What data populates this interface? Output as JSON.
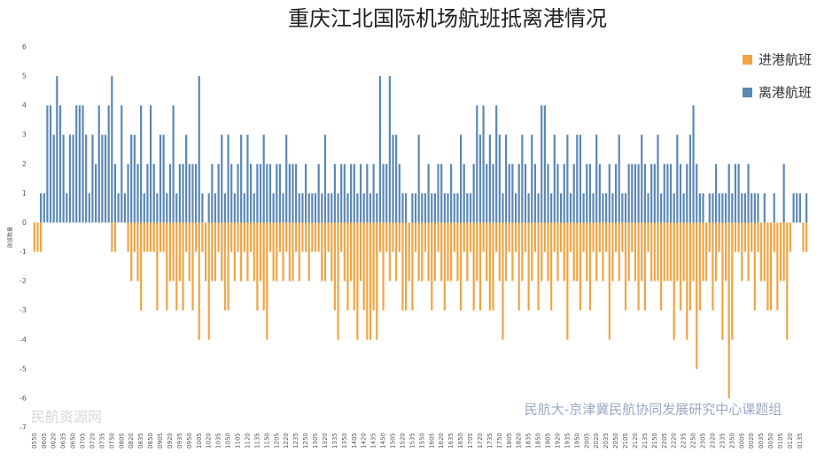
{
  "chart_data": {
    "type": "bar",
    "title": "重庆江北国际机场航班抵离港情况",
    "y_label": "航班数量",
    "annotations": [
      "民航大-京津冀民航协同发展研究中心课题组",
      "民航资源网"
    ],
    "legend_position": "top-right",
    "grid": false,
    "ylim": [
      -7,
      6
    ],
    "yticks": [
      -7,
      -6,
      -5,
      -4,
      -3,
      -2,
      -1,
      0,
      1,
      2,
      3,
      4,
      5,
      6
    ],
    "categories": [
      "0550",
      null,
      null,
      "0605",
      null,
      null,
      "0620",
      null,
      null,
      "0635",
      null,
      null,
      "0650",
      null,
      null,
      "0705",
      null,
      null,
      "0720",
      null,
      null,
      "0735",
      null,
      null,
      "0750",
      null,
      null,
      "0805",
      null,
      null,
      "0820",
      null,
      null,
      "0835",
      null,
      null,
      "0850",
      null,
      null,
      "0905",
      null,
      null,
      "0920",
      null,
      null,
      "0935",
      null,
      null,
      "0950",
      null,
      null,
      "1005",
      null,
      null,
      "1020",
      null,
      null,
      "1035",
      null,
      null,
      "1050",
      null,
      null,
      "1105",
      null,
      null,
      "1120",
      null,
      null,
      "1135",
      null,
      null,
      "1150",
      null,
      null,
      "1205",
      null,
      null,
      "1220",
      null,
      null,
      "1235",
      null,
      null,
      "1250",
      null,
      null,
      "1305",
      null,
      null,
      "1320",
      null,
      null,
      "1335",
      null,
      null,
      "1350",
      null,
      null,
      "1405",
      null,
      null,
      "1420",
      null,
      null,
      "1435",
      null,
      null,
      "1450",
      null,
      null,
      "1505",
      null,
      null,
      "1520",
      null,
      null,
      "1535",
      null,
      null,
      "1550",
      null,
      null,
      "1605",
      null,
      null,
      "1620",
      null,
      null,
      "1635",
      null,
      null,
      "1650",
      null,
      null,
      "1705",
      null,
      null,
      "1720",
      null,
      null,
      "1735",
      null,
      null,
      "1750",
      null,
      null,
      "1805",
      null,
      null,
      "1820",
      null,
      null,
      "1835",
      null,
      null,
      "1850",
      null,
      null,
      "1905",
      null,
      null,
      "1920",
      null,
      null,
      "1935",
      null,
      null,
      "1950",
      null,
      null,
      "2005",
      null,
      null,
      "2020",
      null,
      null,
      "2035",
      null,
      null,
      "2050",
      null,
      null,
      "2105",
      null,
      null,
      "2120",
      null,
      null,
      "2135",
      null,
      null,
      "2150",
      null,
      null,
      "2205",
      null,
      null,
      "2220",
      null,
      null,
      "2235",
      null,
      null,
      "2250",
      null,
      null,
      "2305",
      null,
      null,
      "2320",
      null,
      null,
      "2335",
      null,
      null,
      "2350",
      null,
      null,
      "0005",
      null,
      null,
      "0020",
      null,
      null,
      "0035",
      null,
      null,
      "0050",
      null,
      null,
      "0105",
      null,
      null,
      "0120",
      null,
      null,
      "0135",
      null,
      null
    ],
    "series": [
      {
        "name": "进港航班",
        "color": "#f0a443",
        "values": [
          -1,
          -1,
          -1,
          0,
          0,
          0,
          0,
          0,
          0,
          0,
          0,
          0,
          0,
          0,
          0,
          0,
          0,
          0,
          0,
          0,
          0,
          0,
          0,
          0,
          -1,
          -1,
          0,
          0,
          0,
          -1,
          -2,
          -1,
          -2,
          -3,
          -1,
          -1,
          -1,
          -1,
          -3,
          -1,
          -1,
          -3,
          -2,
          -2,
          -3,
          -2,
          -3,
          -1,
          -2,
          -3,
          -1,
          -4,
          -1,
          -2,
          -4,
          -2,
          -2,
          -1,
          -2,
          -3,
          -3,
          -1,
          -2,
          -1,
          -2,
          -1,
          -2,
          -1,
          -2,
          -3,
          -2,
          -3,
          -4,
          -1,
          -2,
          -2,
          -1,
          -2,
          -1,
          -2,
          -2,
          -1,
          -2,
          -1,
          -1,
          -2,
          -1,
          -1,
          -1,
          -2,
          -2,
          -1,
          -2,
          -3,
          -4,
          -1,
          -2,
          -3,
          -2,
          -3,
          -4,
          -2,
          -3,
          -4,
          -4,
          -3,
          -4,
          -1,
          -3,
          -1,
          -2,
          -1,
          -2,
          -1,
          -3,
          -3,
          -2,
          -3,
          -1,
          -2,
          -2,
          -1,
          -2,
          -3,
          -2,
          -1,
          -2,
          -3,
          -2,
          -2,
          -1,
          -2,
          -3,
          -1,
          -2,
          -1,
          -3,
          -2,
          -3,
          -1,
          -2,
          -3,
          -3,
          -1,
          -2,
          -4,
          -2,
          -1,
          -2,
          -1,
          -3,
          -2,
          -1,
          -3,
          -2,
          -1,
          -3,
          -2,
          -1,
          -2,
          -3,
          -1,
          -2,
          -1,
          -2,
          -4,
          -1,
          -2,
          -2,
          -3,
          -1,
          -2,
          -3,
          -1,
          -2,
          -1,
          -2,
          -1,
          -4,
          -2,
          -1,
          -2,
          -1,
          -3,
          -2,
          -1,
          -2,
          -3,
          -2,
          -3,
          -1,
          -2,
          -2,
          -2,
          -3,
          -2,
          -2,
          -2,
          -4,
          -2,
          -3,
          -2,
          -4,
          -3,
          -2,
          -5,
          -3,
          -2,
          -2,
          -1,
          -3,
          -2,
          -1,
          -4,
          -2,
          -6,
          -4,
          -1,
          -1,
          -2,
          -1,
          -2,
          -1,
          -3,
          -1,
          -2,
          -2,
          -3,
          -3,
          -1,
          -3,
          -2,
          -2,
          -4,
          -1,
          0,
          0,
          0,
          -1,
          -1
        ]
      },
      {
        "name": "离港航班",
        "color": "#5b87b5",
        "values": [
          0,
          0,
          1,
          1,
          4,
          4,
          3,
          5,
          4,
          3,
          1,
          3,
          3,
          4,
          4,
          4,
          3,
          1,
          3,
          2,
          4,
          3,
          3,
          4,
          5,
          2,
          1,
          4,
          1,
          2,
          3,
          3,
          2,
          4,
          1,
          2,
          4,
          2,
          1,
          3,
          3,
          1,
          2,
          4,
          1,
          2,
          2,
          3,
          2,
          2,
          2,
          5,
          1,
          0,
          1,
          2,
          1,
          2,
          3,
          1,
          3,
          2,
          1,
          2,
          3,
          1,
          3,
          2,
          1,
          2,
          2,
          3,
          2,
          2,
          1,
          2,
          2,
          1,
          3,
          2,
          2,
          2,
          1,
          1,
          2,
          1,
          1,
          1,
          2,
          1,
          3,
          1,
          1,
          2,
          1,
          2,
          2,
          1,
          2,
          2,
          1,
          2,
          1,
          2,
          1,
          2,
          1,
          5,
          2,
          2,
          5,
          3,
          3,
          2,
          1,
          1,
          0,
          1,
          1,
          3,
          1,
          1,
          2,
          1,
          1,
          2,
          2,
          1,
          1,
          2,
          1,
          1,
          3,
          2,
          1,
          1,
          2,
          4,
          3,
          4,
          2,
          3,
          2,
          4,
          3,
          1,
          3,
          2,
          2,
          1,
          2,
          3,
          2,
          1,
          3,
          2,
          1,
          4,
          4,
          2,
          1,
          3,
          2,
          1,
          2,
          3,
          1,
          2,
          3,
          3,
          1,
          2,
          2,
          1,
          3,
          2,
          1,
          1,
          2,
          1,
          2,
          3,
          1,
          1,
          2,
          2,
          2,
          2,
          3,
          2,
          1,
          2,
          2,
          3,
          1,
          2,
          2,
          2,
          1,
          3,
          2,
          1,
          2,
          3,
          4,
          2,
          1,
          1,
          0,
          1,
          1,
          2,
          1,
          1,
          1,
          2,
          1,
          2,
          2,
          1,
          1,
          2,
          1,
          1,
          1,
          0,
          1,
          0,
          0,
          1,
          0,
          0,
          2,
          0,
          0,
          1,
          1,
          1,
          0,
          1
        ]
      }
    ]
  }
}
